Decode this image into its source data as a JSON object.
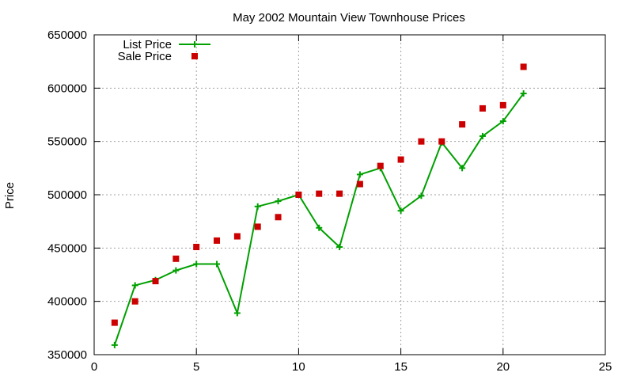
{
  "chart_data": {
    "type": "line",
    "title": "May 2002 Mountain View Townhouse Prices",
    "xlabel": "",
    "ylabel": "Price",
    "xlim": [
      0,
      25
    ],
    "ylim": [
      350000,
      650000
    ],
    "x_ticks": [
      0,
      5,
      10,
      15,
      20,
      25
    ],
    "y_ticks": [
      350000,
      400000,
      450000,
      500000,
      550000,
      600000,
      650000
    ],
    "grid": true,
    "legend_position": "top-left",
    "series": [
      {
        "name": "List Price",
        "style": "line-with-plus",
        "color": "#00a000",
        "x": [
          1,
          2,
          3,
          4,
          5,
          6,
          7,
          8,
          9,
          10,
          11,
          12,
          13,
          14,
          15,
          16,
          17,
          18,
          19,
          20,
          21
        ],
        "y": [
          359000,
          415000,
          420000,
          429000,
          435000,
          435000,
          389000,
          489000,
          494000,
          500000,
          469000,
          451000,
          519000,
          525000,
          485000,
          499000,
          549000,
          525000,
          555000,
          569000,
          595000
        ]
      },
      {
        "name": "Sale Price",
        "style": "square-markers",
        "color": "#cc0000",
        "x": [
          1,
          2,
          3,
          4,
          5,
          6,
          7,
          8,
          9,
          10,
          11,
          12,
          13,
          14,
          15,
          16,
          17,
          18,
          19,
          20,
          21
        ],
        "y": [
          380000,
          400000,
          419000,
          440000,
          451000,
          457000,
          461000,
          470000,
          479000,
          500000,
          501000,
          501000,
          510000,
          527000,
          533000,
          550000,
          550000,
          566000,
          581000,
          584000,
          620000
        ]
      }
    ]
  }
}
